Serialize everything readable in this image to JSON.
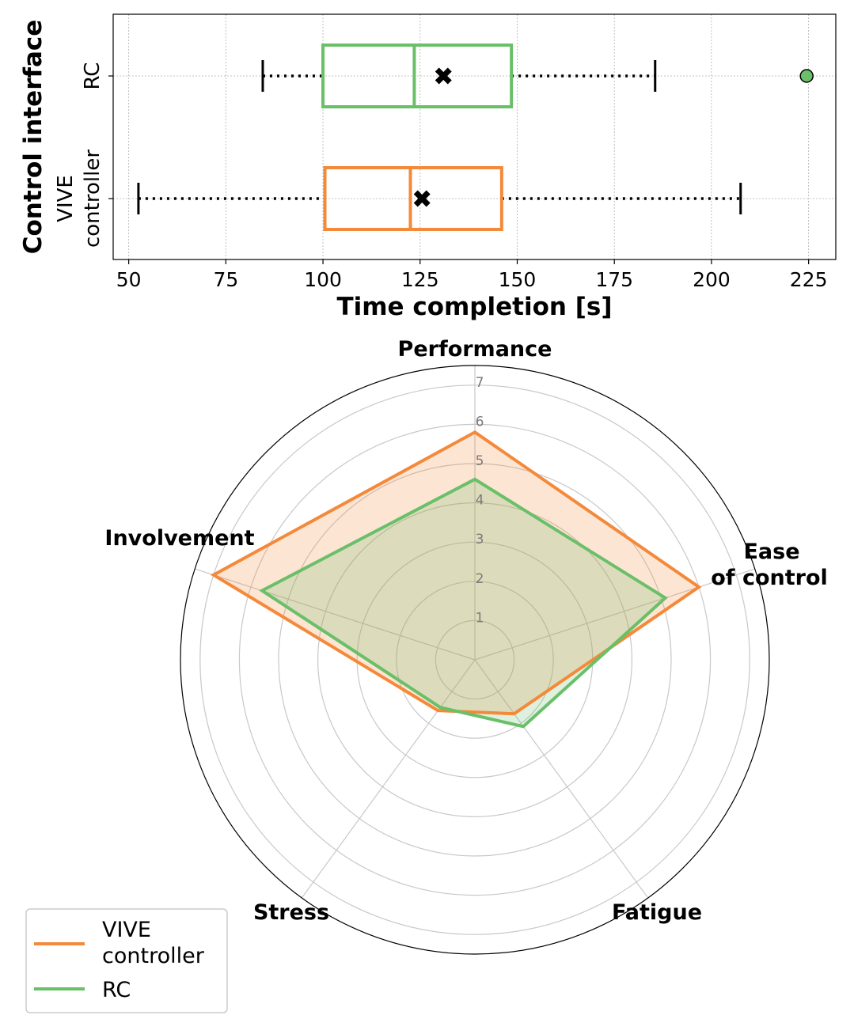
{
  "chart_data": [
    {
      "type": "boxplot",
      "orientation": "horizontal",
      "xlabel": "Time completion [s]",
      "ylabel": "Control interface",
      "xlim": [
        46,
        232
      ],
      "xticks": [
        "50",
        "75",
        "100",
        "125",
        "150",
        "175",
        "200",
        "225"
      ],
      "xtick_values": [
        50,
        75,
        100,
        125,
        150,
        175,
        200,
        225
      ],
      "grid": true,
      "boxes": [
        {
          "category": "RC",
          "category_lines": [
            "RC"
          ],
          "color": "#6abf69",
          "whisker_low": 84.5,
          "q1": 100,
          "median": 123.5,
          "mean": 131,
          "q3": 148.5,
          "whisker_high": 185.5,
          "outliers": [
            224.5
          ]
        },
        {
          "category": "VIVE controller",
          "category_lines": [
            "VIVE",
            "controller"
          ],
          "color": "#f4893a",
          "whisker_low": 52.5,
          "q1": 100.5,
          "median": 122.5,
          "mean": 125.5,
          "q3": 146,
          "whisker_high": 207.5,
          "outliers": []
        }
      ]
    },
    {
      "type": "radar",
      "axes": [
        "Performance",
        "Ease of control",
        "Fatigue",
        "Stress",
        "Involvement"
      ],
      "axis_label_lines": [
        [
          "Performance"
        ],
        [
          "Ease",
          "of control"
        ],
        [
          "Fatigue"
        ],
        [
          "Stress"
        ],
        [
          "Involvement"
        ]
      ],
      "rlim": [
        0,
        7.5
      ],
      "rticks": [
        "1",
        "2",
        "3",
        "4",
        "5",
        "6",
        "7"
      ],
      "rtick_values": [
        1,
        2,
        3,
        4,
        5,
        6,
        7
      ],
      "series": [
        {
          "name": "VIVE controller",
          "color": "#f4893a",
          "values": [
            5.8,
            6.0,
            1.7,
            1.6,
            7.0
          ]
        },
        {
          "name": "RC",
          "color": "#6abf69",
          "values": [
            4.6,
            5.1,
            2.1,
            1.5,
            5.7
          ]
        }
      ],
      "legend": {
        "position": "bottom-left",
        "entries": [
          {
            "label_lines": [
              "VIVE",
              "controller"
            ],
            "color": "#f4893a"
          },
          {
            "label_lines": [
              "RC"
            ],
            "color": "#6abf69"
          }
        ]
      }
    }
  ]
}
